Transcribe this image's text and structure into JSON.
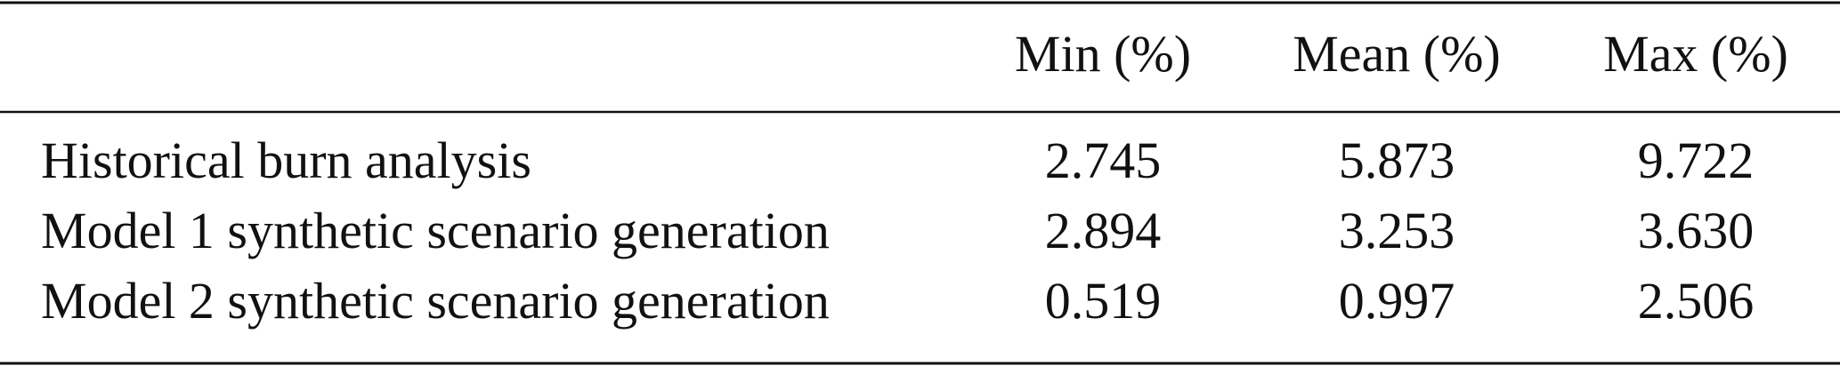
{
  "table": {
    "header": [
      "Min (%)",
      "Mean (%)",
      "Max (%)"
    ],
    "rows": [
      [
        "Historical burn analysis",
        "2.745",
        "5.873",
        "9.722"
      ],
      [
        "Model 1 synthetic scenario generation",
        "2.894",
        "3.253",
        "3.630"
      ],
      [
        "Model 2 synthetic scenario generation",
        "0.519",
        "0.997",
        "2.506"
      ]
    ]
  }
}
